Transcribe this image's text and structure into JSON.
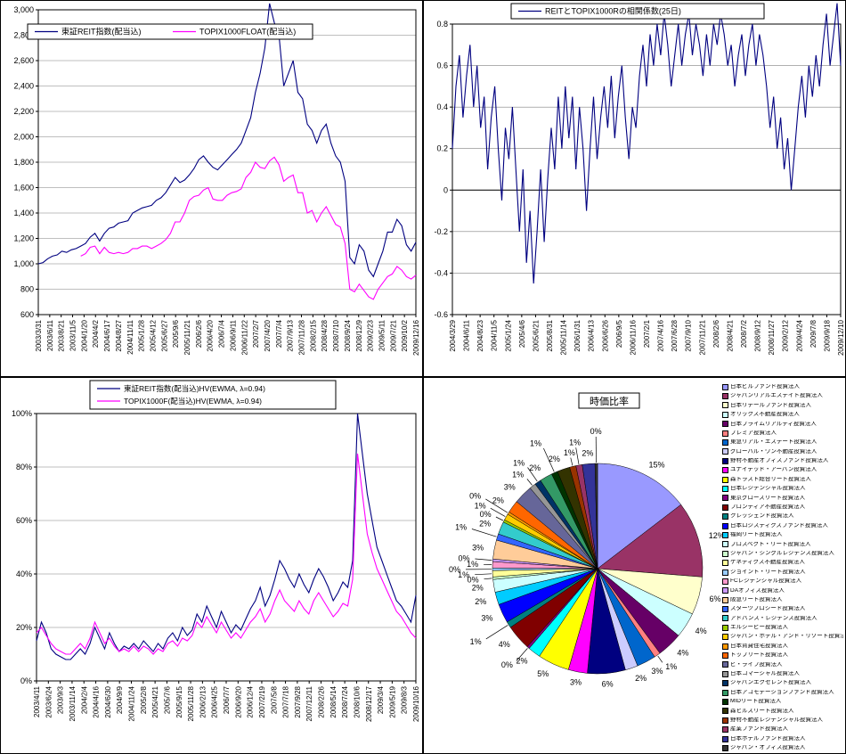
{
  "page": {
    "background": "#FFFFFF"
  },
  "chart_data": [
    {
      "type": "line",
      "title": "",
      "legend_position": "top-inside",
      "y_axis": {
        "min": 600,
        "max": 3000,
        "step": 200,
        "format": "comma"
      },
      "grid": true,
      "x_labels": [
        "2003/3/31",
        "2003/6/11",
        "2003/8/21",
        "2003/11/5",
        "2004/1/20",
        "2004/4/2",
        "2004/6/17",
        "2004/8/27",
        "2004/11/11",
        "2005/1/28",
        "2005/4/12",
        "2005/6/27",
        "2005/9/6",
        "2005/11/21",
        "2006/2/6",
        "2006/4/20",
        "2006/7/4",
        "2006/9/11",
        "2006/11/22",
        "2007/2/7",
        "2007/4/20",
        "2007/7/4",
        "2007/9/13",
        "2007/11/28",
        "2008/2/15",
        "2008/4/28",
        "2008/7/10",
        "2008/9/24",
        "2008/12/9",
        "2009/2/23",
        "2009/5/11",
        "2009/7/21",
        "2009/10/2",
        "2009/12/16"
      ],
      "series": [
        {
          "name": "東証REIT指数(配当込)",
          "color": "#000080",
          "values": [
            1000,
            1010,
            1040,
            1060,
            1070,
            1100,
            1090,
            1110,
            1120,
            1140,
            1160,
            1210,
            1240,
            1180,
            1240,
            1280,
            1290,
            1320,
            1330,
            1340,
            1400,
            1420,
            1440,
            1450,
            1460,
            1500,
            1520,
            1560,
            1620,
            1680,
            1640,
            1660,
            1700,
            1750,
            1820,
            1850,
            1800,
            1760,
            1740,
            1780,
            1820,
            1860,
            1900,
            1950,
            2050,
            2150,
            2350,
            2500,
            2700,
            3050,
            2900,
            2800,
            2400,
            2500,
            2600,
            2350,
            2300,
            2100,
            2050,
            1950,
            2050,
            2100,
            1950,
            1850,
            1800,
            1650,
            1050,
            1000,
            1150,
            1100,
            950,
            900,
            1000,
            1100,
            1250,
            1250,
            1350,
            1300,
            1150,
            1100,
            1170
          ]
        },
        {
          "name": "TOPIX1000FLOAT(配当込)",
          "color": "#FF00FF",
          "values": [
            null,
            null,
            null,
            null,
            null,
            null,
            null,
            null,
            null,
            1060,
            1080,
            1130,
            1140,
            1080,
            1130,
            1090,
            1080,
            1090,
            1080,
            1090,
            1120,
            1120,
            1140,
            1140,
            1120,
            1140,
            1160,
            1190,
            1240,
            1330,
            1330,
            1400,
            1500,
            1530,
            1540,
            1580,
            1600,
            1510,
            1500,
            1500,
            1540,
            1560,
            1570,
            1590,
            1680,
            1720,
            1800,
            1760,
            1750,
            1810,
            1840,
            1780,
            1650,
            1680,
            1700,
            1560,
            1560,
            1400,
            1420,
            1330,
            1400,
            1450,
            1380,
            1310,
            1290,
            1160,
            800,
            780,
            840,
            790,
            740,
            720,
            800,
            850,
            900,
            920,
            980,
            950,
            900,
            880,
            910
          ]
        }
      ]
    },
    {
      "type": "line",
      "title": "REITとTOPIX1000Rの相関係数(25日)",
      "legend_position": "top",
      "y_axis": {
        "min": -0.6,
        "max": 0.8,
        "step": 0.2,
        "format": "decimal"
      },
      "grid": true,
      "x_labels": [
        "2004/3/29",
        "2004/6/11",
        "2004/8/23",
        "2004/11/5",
        "2005/1/24",
        "2005/4/6",
        "2005/6/21",
        "2005/8/31",
        "2005/11/14",
        "2006/1/31",
        "2006/4/13",
        "2006/6/26",
        "2006/9/5",
        "2006/11/16",
        "2007/2/1",
        "2007/4/16",
        "2007/6/28",
        "2007/9/10",
        "2007/11/21",
        "2008/2/6",
        "2008/4/21",
        "2008/7/2",
        "2008/9/12",
        "2008/11/27",
        "2009/2/12",
        "2009/4/24",
        "2009/7/8",
        "2009/9/18",
        "2009/12/10"
      ],
      "series": [
        {
          "name": "REITとTOPIX1000Rの相関係数(25日)",
          "color": "#000080",
          "values": [
            0.2,
            0.5,
            0.65,
            0.35,
            0.55,
            0.7,
            0.4,
            0.6,
            0.3,
            0.45,
            0.1,
            0.35,
            0.5,
            0.2,
            -0.05,
            0.3,
            0.15,
            0.4,
            0.1,
            -0.2,
            0.1,
            -0.35,
            -0.1,
            -0.45,
            -0.2,
            0.1,
            -0.25,
            0.05,
            0.3,
            0.1,
            0.45,
            0.2,
            0.5,
            0.25,
            0.45,
            0.1,
            0.4,
            0.2,
            -0.1,
            0.2,
            0.45,
            0.15,
            0.35,
            0.5,
            0.3,
            0.55,
            0.25,
            0.45,
            0.6,
            0.35,
            0.15,
            0.4,
            0.3,
            0.55,
            0.7,
            0.5,
            0.75,
            0.6,
            0.8,
            0.65,
            0.85,
            0.7,
            0.5,
            0.65,
            0.8,
            0.6,
            0.75,
            0.85,
            0.65,
            0.8,
            0.7,
            0.55,
            0.75,
            0.6,
            0.8,
            0.7,
            0.85,
            0.75,
            0.6,
            0.7,
            0.5,
            0.65,
            0.75,
            0.55,
            0.7,
            0.8,
            0.6,
            0.75,
            0.65,
            0.5,
            0.3,
            0.45,
            0.2,
            0.35,
            0.1,
            0.25,
            0.0,
            0.2,
            0.4,
            0.55,
            0.35,
            0.6,
            0.45,
            0.65,
            0.5,
            0.7,
            0.85,
            0.6,
            0.75,
            0.9,
            0.6
          ]
        }
      ]
    },
    {
      "type": "line",
      "title": "",
      "legend_position": "top",
      "y_axis": {
        "min": 0,
        "max": 100,
        "step": 20,
        "format": "percent"
      },
      "grid": true,
      "x_labels": [
        "2003/4/11",
        "2003/6/24",
        "2003/9/3",
        "2003/11/14",
        "2004/2/4",
        "2004/4/16",
        "2004/6/30",
        "2004/9/9",
        "2004/11/24",
        "2005/2/8",
        "2005/4/21",
        "2005/7/6",
        "2005/9/15",
        "2005/11/28",
        "2006/2/13",
        "2006/4/25",
        "2006/7/7",
        "2006/9/20",
        "2006/12/4",
        "2007/2/19",
        "2007/5/8",
        "2007/7/18",
        "2007/9/28",
        "2007/12/11",
        "2008/2/26",
        "2008/5/14",
        "2008/7/24",
        "2008/10/6",
        "2008/12/17",
        "2009/3/4",
        "2009/5/19",
        "2009/8/3",
        "2009/10/16"
      ],
      "series": [
        {
          "name": "東証REIT指数(配当込)HV(EWMA, λ=0.94)",
          "color": "#000080",
          "values": [
            15,
            22,
            18,
            12,
            10,
            9,
            8,
            8,
            10,
            12,
            10,
            14,
            20,
            16,
            12,
            18,
            14,
            11,
            13,
            12,
            14,
            12,
            15,
            13,
            11,
            14,
            12,
            16,
            18,
            15,
            20,
            17,
            19,
            25,
            22,
            28,
            24,
            20,
            26,
            22,
            18,
            21,
            19,
            23,
            27,
            30,
            35,
            28,
            32,
            38,
            45,
            42,
            38,
            35,
            40,
            36,
            33,
            38,
            42,
            39,
            35,
            30,
            33,
            37,
            35,
            45,
            100,
            85,
            70,
            60,
            50,
            45,
            40,
            35,
            30,
            28,
            25,
            22,
            32
          ]
        },
        {
          "name": "TOPIX1000F(配当込)HV(EWMA, λ=0.94)",
          "color": "#FF00FF",
          "values": [
            18,
            20,
            17,
            14,
            12,
            11,
            10,
            10,
            12,
            14,
            12,
            16,
            22,
            18,
            14,
            16,
            13,
            11,
            12,
            11,
            13,
            11,
            13,
            12,
            10,
            12,
            11,
            14,
            15,
            13,
            16,
            15,
            17,
            22,
            20,
            24,
            21,
            18,
            22,
            19,
            16,
            18,
            16,
            19,
            22,
            24,
            27,
            22,
            25,
            30,
            34,
            30,
            28,
            26,
            30,
            27,
            25,
            30,
            33,
            30,
            27,
            24,
            26,
            29,
            28,
            38,
            85,
            70,
            55,
            48,
            42,
            38,
            34,
            30,
            26,
            24,
            21,
            18,
            16
          ]
        }
      ]
    },
    {
      "type": "pie",
      "title": "時価比率",
      "start_angle": "top",
      "direction": "clockwise",
      "labels": [
        "日本ビルファンド投資法人",
        "ジャパンリアルエステイト投資法人",
        "日本リテールファンド投資法人",
        "オリックス不動産投資法人",
        "日本プライムリアルティ投資法人",
        "プレミア投資法人",
        "東急リアル・エステート投資法人",
        "グローバル・ワン不動産投資法人",
        "野村不動産オフィスファンド投資法人",
        "ユナイテッド・アーバン投資法人",
        "森トラスト総合リート投資法人",
        "日本レジデンシャル投資法人",
        "東京グロースリート投資法人",
        "フロンティア不動産投資法人",
        "クレッシェンド投資法人",
        "日本ロジスティクスファンド投資法人",
        "福岡リート投資法人",
        "プロスペクト・リート投資法人",
        "ジャパン・シングルレジデンス投資法人",
        "ケネディクス不動産投資法人",
        "ジョイント・リート投資法人",
        "FCレジデンシャル投資法人",
        "DAオフィス投資法人",
        "阪急リート投資法人",
        "スターツプロシード投資法人",
        "アドバンス・レジデンス投資法人",
        "エルシーピー投資法人",
        "ジャパン・ホテル・アンド・リゾート投資法人",
        "日本賃貸住宅投資法人",
        "トップリート投資法人",
        "ビ・ライフ投資法人",
        "日本コマーシャル投資法人",
        "ジャパンエクセレント投資法人",
        "日本アコモデーションファンド投資法人",
        "MIDリート投資法人",
        "森ヒルズリート投資法人",
        "野村不動産レジデンシャル投資法人",
        "産業ファンド投資法人",
        "日本ホテルファンド投資法人",
        "ジャパン・オフィス投資法人"
      ],
      "values": [
        15,
        12,
        6,
        4,
        4,
        1,
        3,
        2,
        6,
        3,
        5,
        2,
        0.4,
        4,
        1,
        3,
        2,
        2,
        0.4,
        1,
        0.4,
        1,
        0.4,
        3,
        1,
        2,
        0.4,
        1,
        0.4,
        2,
        3,
        1,
        1,
        2,
        1,
        2,
        1,
        1,
        2,
        0.4
      ],
      "colors": [
        "#9999FF",
        "#993366",
        "#FFFFCC",
        "#CCFFFF",
        "#660066",
        "#FF8080",
        "#0066CC",
        "#CCCCFF",
        "#000080",
        "#FF00FF",
        "#FFFF00",
        "#00FFFF",
        "#800080",
        "#800000",
        "#008080",
        "#0000FF",
        "#00CCFF",
        "#CCFFFF",
        "#CCFFCC",
        "#FFFF99",
        "#99CCFF",
        "#FF99CC",
        "#CC99FF",
        "#FFCC99",
        "#3366FF",
        "#33CCCC",
        "#99CC00",
        "#FFCC00",
        "#FF9900",
        "#FF6600",
        "#666699",
        "#969696",
        "#003366",
        "#339966",
        "#003300",
        "#333300",
        "#993300",
        "#993366",
        "#333399",
        "#333333"
      ],
      "legend_position": "right"
    }
  ]
}
